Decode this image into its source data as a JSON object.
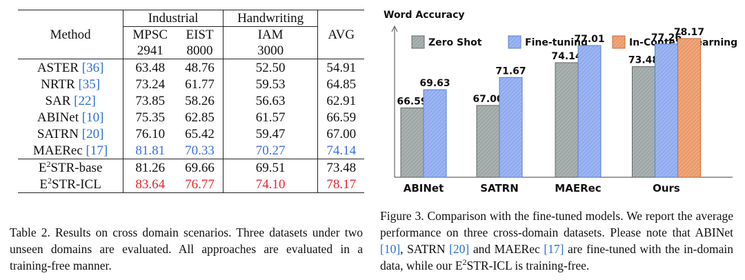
{
  "table": {
    "group_headers": {
      "industrial": "Industrial",
      "handwriting": "Handwriting"
    },
    "columns": {
      "method": "Method",
      "mpsc": "MPSC",
      "mpsc_count": "2941",
      "eist": "EIST",
      "eist_count": "8000",
      "iam": "IAM",
      "iam_count": "3000",
      "avg": "AVG"
    },
    "rows": [
      {
        "name": "ASTER",
        "cite": "[36]",
        "mpsc": "63.48",
        "eist": "48.76",
        "iam": "52.50",
        "avg": "54.91"
      },
      {
        "name": "NRTR",
        "cite": "[35]",
        "mpsc": "73.24",
        "eist": "61.77",
        "iam": "59.53",
        "avg": "64.85"
      },
      {
        "name": "SAR",
        "cite": "[22]",
        "mpsc": "73.85",
        "eist": "58.26",
        "iam": "56.63",
        "avg": "62.91"
      },
      {
        "name": "ABINet",
        "cite": "[10]",
        "mpsc": "75.35",
        "eist": "62.85",
        "iam": "61.57",
        "avg": "66.59"
      },
      {
        "name": "SATRN",
        "cite": "[20]",
        "mpsc": "76.10",
        "eist": "65.42",
        "iam": "59.47",
        "avg": "67.00"
      },
      {
        "name": "MAERec",
        "cite": "[17]",
        "mpsc": "81.81",
        "eist": "70.33",
        "iam": "70.27",
        "avg": "74.14"
      }
    ],
    "ours": [
      {
        "prefix": "E",
        "sup": "2",
        "suffix": "STR-base",
        "mpsc": "81.26",
        "eist": "69.66",
        "iam": "69.51",
        "avg": "73.48"
      },
      {
        "prefix": "E",
        "sup": "2",
        "suffix": "STR-ICL",
        "mpsc": "83.64",
        "eist": "76.77",
        "iam": "74.10",
        "avg": "78.17"
      }
    ],
    "caption": "Table 2. Results on cross domain scenarios. Three datasets under two unseen domains are evaluated. All approaches are evaluated in a training-free manner."
  },
  "figure": {
    "caption_part1": "Figure 3. Comparison with the fine-tuned models. We report the average performance on three cross-domain datasets. Please note that ABINet ",
    "cite_abinet": "[10]",
    "caption_part2": ", SATRN ",
    "cite_satrn": "[20]",
    "caption_part3": " and MAERec ",
    "cite_maerec": "[17]",
    "caption_part4": " are fine-tuned with the in-domain data, while our E",
    "caption_sup": "2",
    "caption_part5": "STR-ICL is training-free."
  },
  "colors": {
    "zero_shot": "#a9b1b1",
    "fine_tuning": "#8eaaf0",
    "icl": "#ec9a6e",
    "cite": "#2a6fd6",
    "best_red": "#e8242b",
    "second_blue": "#3b6fe0"
  },
  "chart_data": {
    "type": "bar",
    "title": "Word Accuracy",
    "ylim": [
      55,
      80
    ],
    "categories": [
      "ABINet",
      "SATRN",
      "MAERec",
      "Ours"
    ],
    "series": [
      {
        "name": "Zero Shot",
        "values": [
          66.59,
          67.0,
          74.14,
          73.48
        ],
        "labels": [
          "66.59",
          "67.00",
          "74.14",
          "73.48"
        ]
      },
      {
        "name": "Fine-tuning",
        "values": [
          69.63,
          71.67,
          77.01,
          77.26
        ],
        "labels": [
          "69.63",
          "71.67",
          "77.01",
          "77.26"
        ]
      },
      {
        "name": "In-Context Learning",
        "values": [
          null,
          null,
          null,
          78.17
        ],
        "labels": [
          null,
          null,
          null,
          "78.17"
        ]
      }
    ],
    "legend_placement": "top",
    "grid": false
  }
}
